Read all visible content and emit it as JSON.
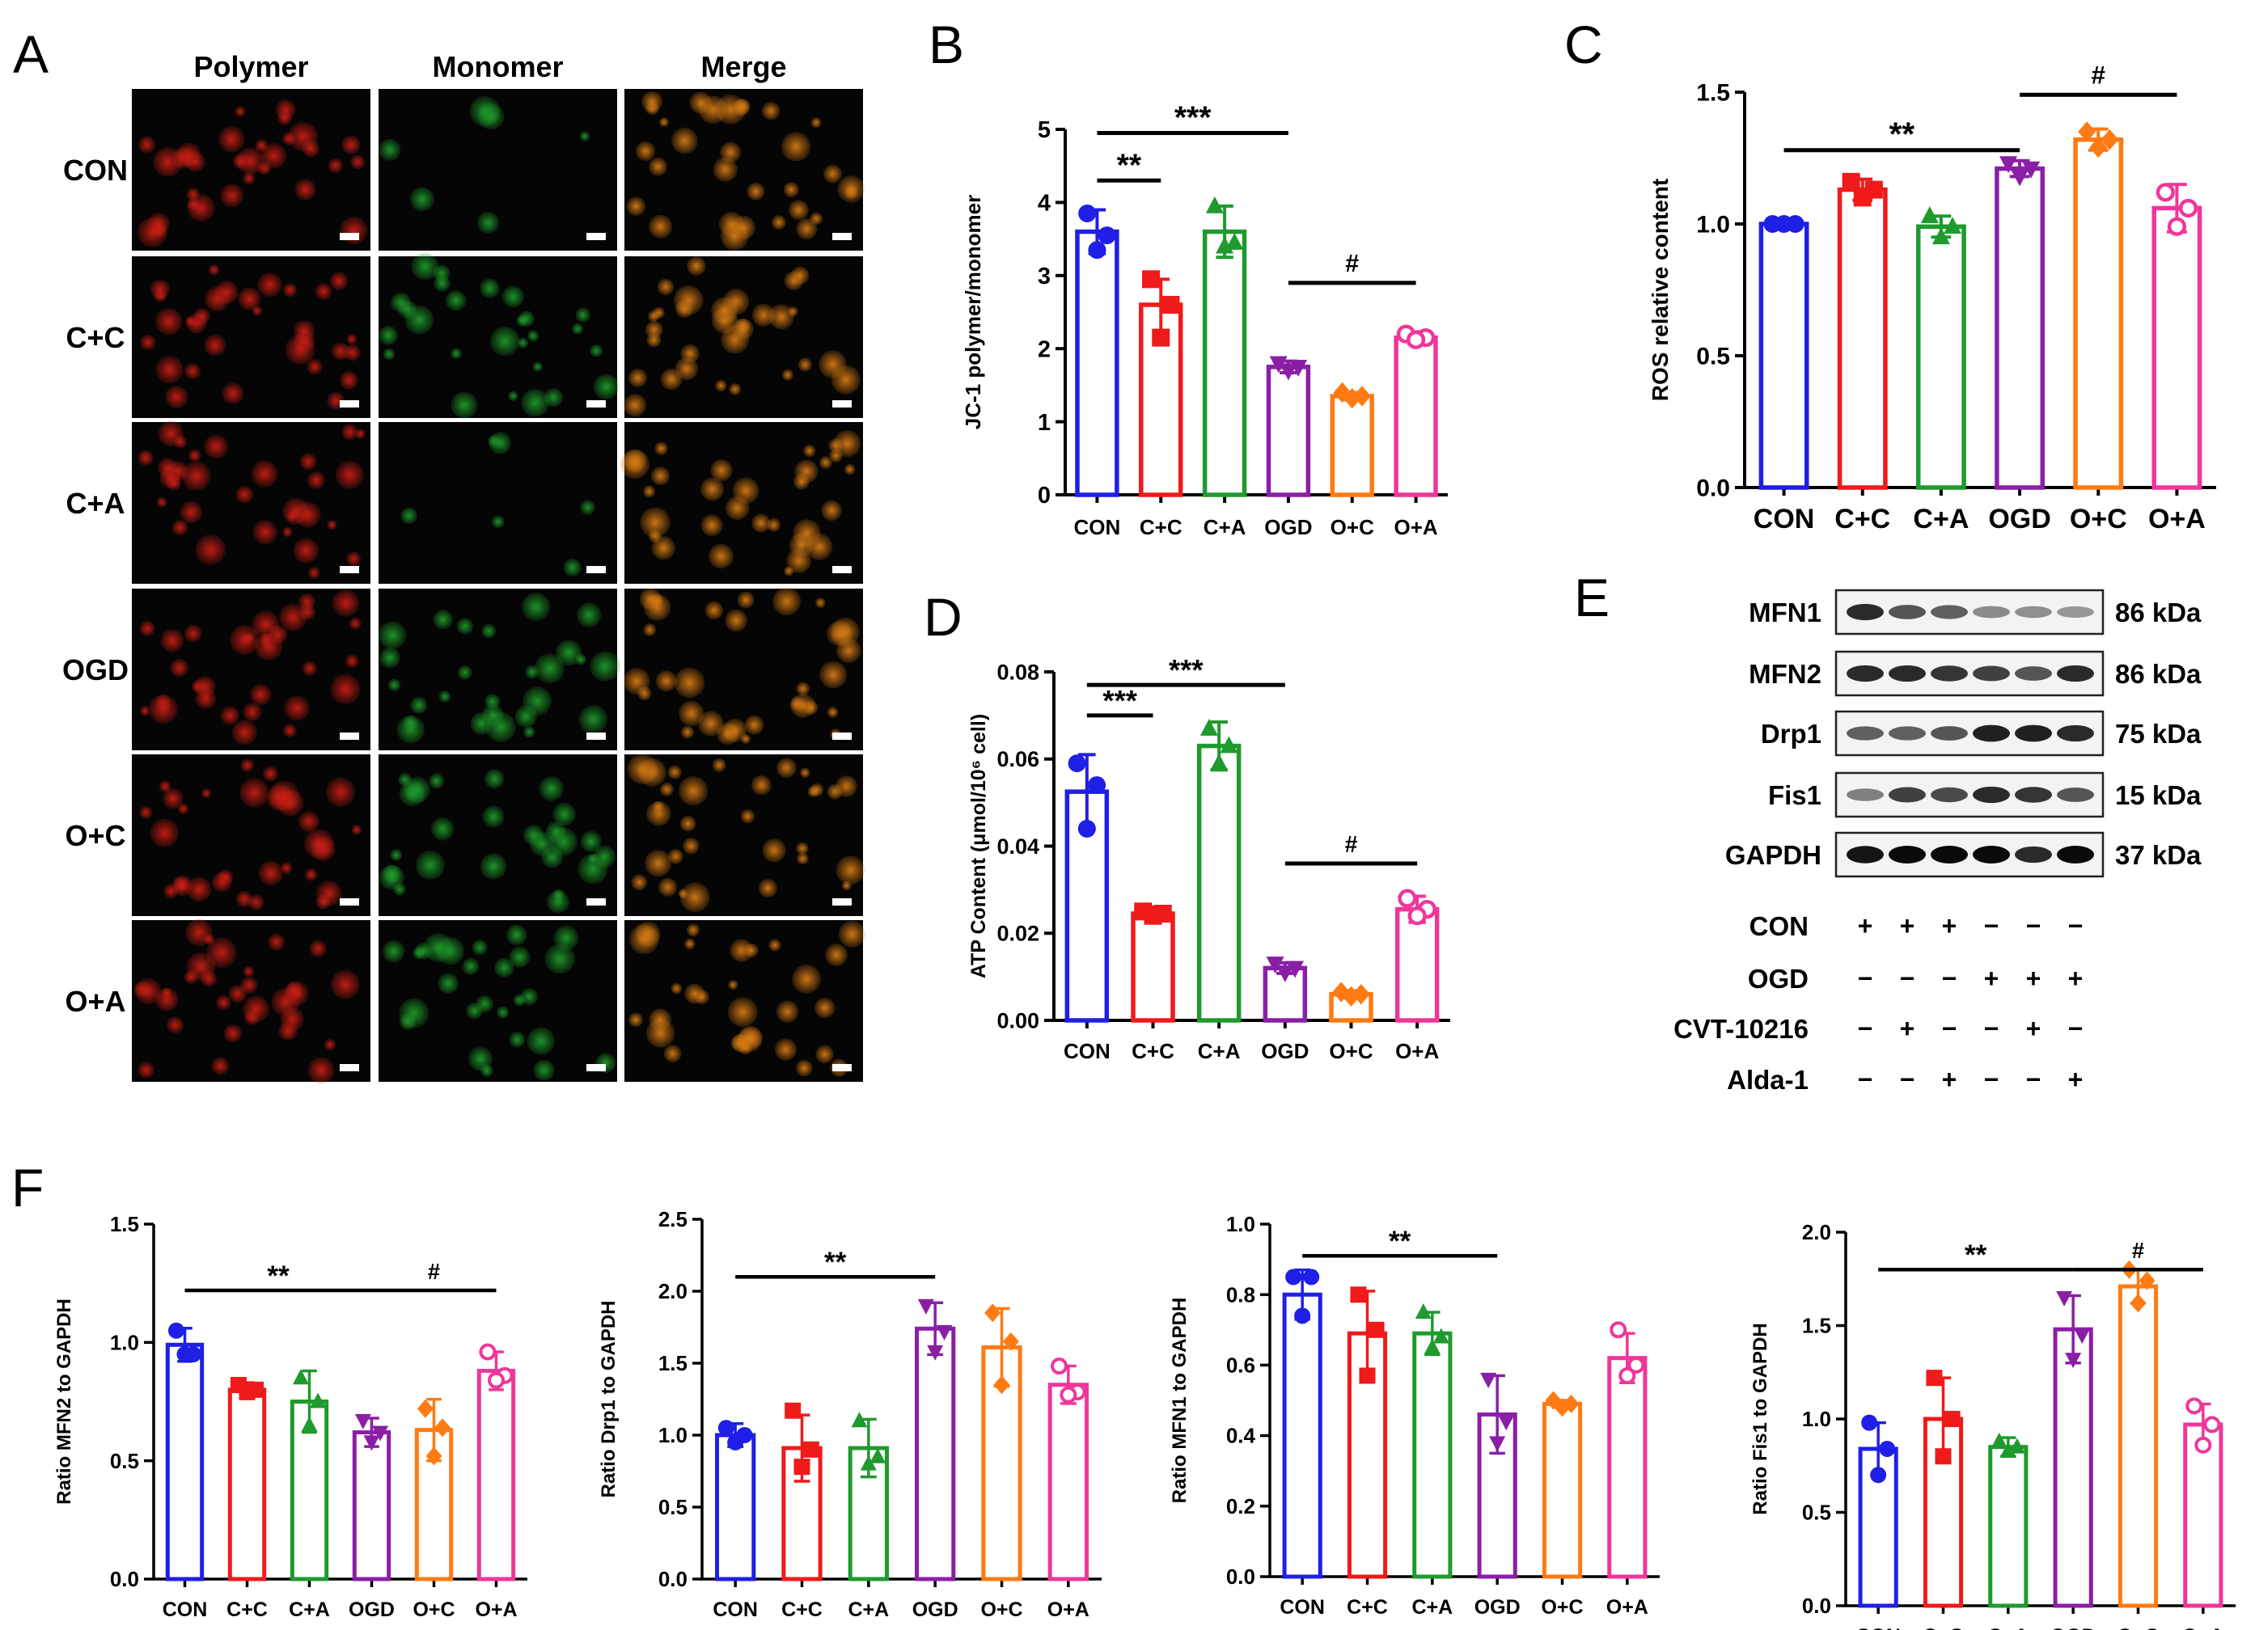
{
  "panel_labels": {
    "A": "A",
    "B": "B",
    "C": "C",
    "D": "D",
    "E": "E",
    "F": "F"
  },
  "colors": {
    "CON": "#1f1fe6",
    "C+C": "#ef1a1a",
    "C+A": "#1f9a2e",
    "OGD": "#8a1fa6",
    "O+C": "#ff7a12",
    "O+A": "#f0369a"
  },
  "microscopy": {
    "columns": [
      "Polymer",
      "Monomer",
      "Merge"
    ],
    "rows": [
      "CON",
      "C+C",
      "C+A",
      "OGD",
      "O+C",
      "O+A"
    ],
    "channel_colors": [
      "#c81e14",
      "#1e9a2a",
      "#d67a14"
    ]
  },
  "chart_data": [
    {
      "id": "B",
      "type": "bar",
      "title": "",
      "xlabel": "",
      "ylabel": "JC-1 polymer/monomer",
      "categories": [
        "CON",
        "C+C",
        "C+A",
        "OGD",
        "O+C",
        "O+A"
      ],
      "ylim": [
        0,
        5
      ],
      "yticks": [
        "0",
        "1",
        "2",
        "3",
        "4",
        "5"
      ],
      "values": [
        3.6,
        2.6,
        3.6,
        1.75,
        1.35,
        2.15
      ],
      "errors": [
        0.3,
        0.35,
        0.35,
        0.08,
        0.05,
        0.08
      ],
      "points": [
        [
          3.85,
          3.55,
          3.35
        ],
        [
          2.95,
          2.6,
          2.15
        ],
        [
          3.95,
          3.45,
          3.4
        ],
        [
          1.8,
          1.75,
          1.7
        ],
        [
          1.4,
          1.35,
          1.32
        ],
        [
          2.2,
          2.15,
          2.12
        ]
      ],
      "significance": [
        {
          "from": 0,
          "to": 1,
          "y": 4.3,
          "label": "**"
        },
        {
          "from": 0,
          "to": 3,
          "y": 4.95,
          "label": "***"
        },
        {
          "from": 3,
          "to": 5,
          "y": 2.9,
          "label": "#"
        }
      ]
    },
    {
      "id": "C",
      "type": "bar",
      "title": "",
      "xlabel": "",
      "ylabel": "ROS relative content",
      "categories": [
        "CON",
        "C+C",
        "C+A",
        "OGD",
        "O+C",
        "O+A"
      ],
      "ylim": [
        0,
        1.5
      ],
      "yticks": [
        "0.0",
        "0.5",
        "1.0",
        "1.5"
      ],
      "values": [
        1.0,
        1.13,
        0.99,
        1.21,
        1.32,
        1.06
      ],
      "errors": [
        0.01,
        0.04,
        0.04,
        0.03,
        0.04,
        0.09
      ],
      "points": [
        [
          1.0,
          1.0,
          1.0
        ],
        [
          1.16,
          1.13,
          1.1
        ],
        [
          1.03,
          0.99,
          0.95
        ],
        [
          1.23,
          1.21,
          1.18
        ],
        [
          1.35,
          1.32,
          1.29
        ],
        [
          1.12,
          1.06,
          0.99
        ]
      ],
      "significance": [
        {
          "from": 0,
          "to": 3,
          "y": 1.28,
          "label": "**"
        },
        {
          "from": 3,
          "to": 5,
          "y": 1.49,
          "label": "#"
        }
      ]
    },
    {
      "id": "D",
      "type": "bar",
      "title": "",
      "xlabel": "",
      "ylabel": "ATP Content (μmol/10⁶ cell)",
      "categories": [
        "CON",
        "C+C",
        "C+A",
        "OGD",
        "O+C",
        "O+A"
      ],
      "ylim": [
        0,
        0.08
      ],
      "yticks": [
        "0.00",
        "0.02",
        "0.04",
        "0.06",
        "0.08"
      ],
      "values": [
        0.0525,
        0.0245,
        0.063,
        0.012,
        0.006,
        0.0255
      ],
      "errors": [
        0.0085,
        0.0015,
        0.0055,
        0.0012,
        0.0008,
        0.003
      ],
      "points": [
        [
          0.059,
          0.054,
          0.044
        ],
        [
          0.025,
          0.0245,
          0.024
        ],
        [
          0.067,
          0.063,
          0.059
        ],
        [
          0.013,
          0.012,
          0.011
        ],
        [
          0.0065,
          0.006,
          0.0055
        ],
        [
          0.028,
          0.0255,
          0.024
        ]
      ],
      "significance": [
        {
          "from": 0,
          "to": 1,
          "y": 0.07,
          "label": "***"
        },
        {
          "from": 0,
          "to": 3,
          "y": 0.077,
          "label": "***"
        },
        {
          "from": 3,
          "to": 5,
          "y": 0.036,
          "label": "#"
        }
      ]
    },
    {
      "id": "F1",
      "type": "bar",
      "title": "",
      "xlabel": "",
      "ylabel": "Ratio MFN2 to GAPDH",
      "categories": [
        "CON",
        "C+C",
        "C+A",
        "OGD",
        "O+C",
        "O+A"
      ],
      "ylim": [
        0,
        1.5
      ],
      "yticks": [
        "0.0",
        "0.5",
        "1.0",
        "1.5"
      ],
      "values": [
        0.99,
        0.8,
        0.75,
        0.62,
        0.63,
        0.88
      ],
      "errors": [
        0.07,
        0.03,
        0.13,
        0.06,
        0.13,
        0.08
      ],
      "points": [
        [
          1.05,
          0.95,
          0.95
        ],
        [
          0.82,
          0.8,
          0.79
        ],
        [
          0.85,
          0.75,
          0.65
        ],
        [
          0.67,
          0.62,
          0.58
        ],
        [
          0.72,
          0.64,
          0.52
        ],
        [
          0.96,
          0.86,
          0.84
        ]
      ],
      "significance": [
        {
          "from": 0,
          "to": 3,
          "y": 1.22,
          "label": "**"
        },
        {
          "from": 3,
          "to": 5,
          "y": 1.22,
          "label": "#"
        }
      ]
    },
    {
      "id": "F2",
      "type": "bar",
      "title": "",
      "xlabel": "",
      "ylabel": "Ratio Drp1 to GAPDH",
      "categories": [
        "CON",
        "C+C",
        "C+A",
        "OGD",
        "O+C",
        "O+A"
      ],
      "ylim": [
        0,
        2.5
      ],
      "yticks": [
        "0.0",
        "0.5",
        "1.0",
        "1.5",
        "2.0",
        "2.5"
      ],
      "values": [
        1.0,
        0.91,
        0.91,
        1.74,
        1.61,
        1.35
      ],
      "errors": [
        0.08,
        0.23,
        0.2,
        0.18,
        0.27,
        0.13
      ],
      "points": [
        [
          1.05,
          1.0,
          0.95
        ],
        [
          1.17,
          0.9,
          0.78
        ],
        [
          1.1,
          0.85,
          0.8
        ],
        [
          1.9,
          1.72,
          1.58
        ],
        [
          1.85,
          1.65,
          1.35
        ],
        [
          1.48,
          1.3,
          1.28
        ]
      ],
      "significance": [
        {
          "from": 0,
          "to": 3,
          "y": 2.1,
          "label": "**"
        }
      ]
    },
    {
      "id": "F3",
      "type": "bar",
      "title": "",
      "xlabel": "",
      "ylabel": "Ratio MFN1 to GAPDH",
      "categories": [
        "CON",
        "C+C",
        "C+A",
        "OGD",
        "O+C",
        "O+A"
      ],
      "ylim": [
        0,
        1.0
      ],
      "yticks": [
        "0.0",
        "0.2",
        "0.4",
        "0.6",
        "0.8",
        "1.0"
      ],
      "values": [
        0.8,
        0.69,
        0.69,
        0.46,
        0.49,
        0.62
      ],
      "errors": [
        0.07,
        0.12,
        0.06,
        0.11,
        0.01,
        0.07
      ],
      "points": [
        [
          0.85,
          0.85,
          0.74
        ],
        [
          0.8,
          0.7,
          0.57
        ],
        [
          0.75,
          0.68,
          0.65
        ],
        [
          0.56,
          0.44,
          0.38
        ],
        [
          0.5,
          0.49,
          0.48
        ],
        [
          0.7,
          0.6,
          0.57
        ]
      ],
      "significance": [
        {
          "from": 0,
          "to": 3,
          "y": 0.91,
          "label": "**"
        }
      ]
    },
    {
      "id": "F4",
      "type": "bar",
      "title": "",
      "xlabel": "",
      "ylabel": "Ratio Fis1 to GAPDH",
      "categories": [
        "CON",
        "C+C",
        "C+A",
        "OGD",
        "O+C",
        "O+A"
      ],
      "ylim": [
        0,
        2.0
      ],
      "yticks": [
        "0.0",
        "0.5",
        "1.0",
        "1.5",
        "2.0"
      ],
      "values": [
        0.84,
        1.0,
        0.85,
        1.48,
        1.71,
        0.97
      ],
      "errors": [
        0.14,
        0.22,
        0.05,
        0.18,
        0.09,
        0.11
      ],
      "points": [
        [
          0.98,
          0.84,
          0.7
        ],
        [
          1.22,
          1.0,
          0.8
        ],
        [
          0.88,
          0.85,
          0.83
        ],
        [
          1.65,
          1.45,
          1.32
        ],
        [
          1.8,
          1.74,
          1.62
        ],
        [
          1.07,
          0.97,
          0.86
        ]
      ],
      "significance": [
        {
          "from": 0,
          "to": 3,
          "y": 1.8,
          "label": "**"
        },
        {
          "from": 3,
          "to": 5,
          "y": 1.8,
          "label": "#"
        }
      ]
    }
  ],
  "blot": {
    "proteins": [
      {
        "name": "MFN1",
        "kda": "86 kDa",
        "intensity": [
          0.85,
          0.65,
          0.6,
          0.4,
          0.38,
          0.35
        ]
      },
      {
        "name": "MFN2",
        "kda": "86 kDa",
        "intensity": [
          0.85,
          0.85,
          0.8,
          0.75,
          0.65,
          0.85
        ]
      },
      {
        "name": "Drp1",
        "kda": "75 kDa",
        "intensity": [
          0.6,
          0.6,
          0.65,
          0.9,
          0.9,
          0.85
        ]
      },
      {
        "name": "Fis1",
        "kda": "15 kDa",
        "intensity": [
          0.45,
          0.75,
          0.7,
          0.85,
          0.8,
          0.65
        ]
      },
      {
        "name": "GAPDH",
        "kda": "37 kDa",
        "intensity": [
          0.95,
          1.0,
          1.0,
          1.0,
          0.85,
          1.0
        ]
      }
    ],
    "conditions": [
      {
        "name": "CON",
        "signs": [
          "+",
          "+",
          "+",
          "−",
          "−",
          "−"
        ]
      },
      {
        "name": "OGD",
        "signs": [
          "−",
          "−",
          "−",
          "+",
          "+",
          "+"
        ]
      },
      {
        "name": "CVT-10216",
        "signs": [
          "−",
          "+",
          "−",
          "−",
          "+",
          "−"
        ]
      },
      {
        "name": "Alda-1",
        "signs": [
          "−",
          "−",
          "+",
          "−",
          "−",
          "+"
        ]
      }
    ]
  }
}
